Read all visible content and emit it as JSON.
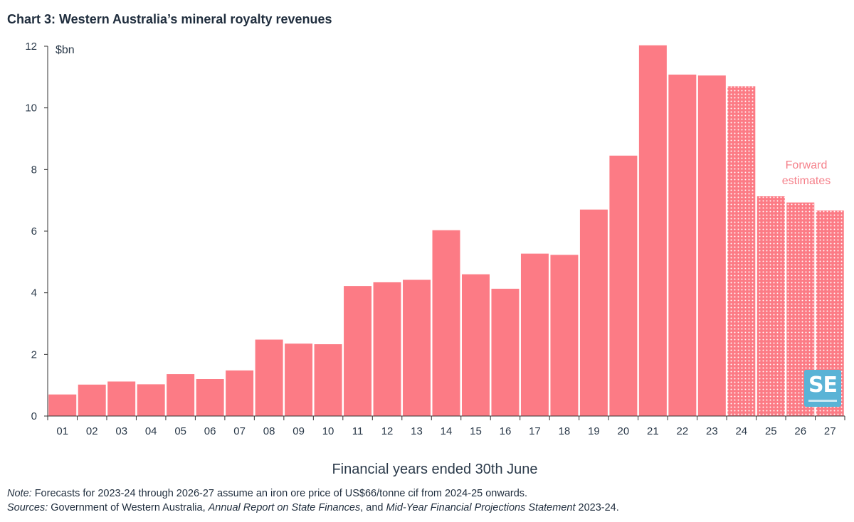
{
  "title": "Chart 3: Western Australia’s mineral royalty revenues",
  "notes": {
    "note_label": "Note:",
    "note_text": " Forecasts for 2023-24 through 2026-27 assume an iron ore price of US$66/tonne cif from 2024-25 onwards.",
    "sources_label": "Sources:",
    "sources_text_1": " Government of Western Australia, ",
    "sources_italic_1": "Annual Report on State Finances",
    "sources_text_2": ", and ",
    "sources_italic_2": "Mid-Year Financial Projections Statement",
    "sources_text_3": " 2023-24."
  },
  "logo": {
    "text": "SE"
  },
  "chart_data": {
    "type": "bar",
    "xlabel": "Financial years ended 30th June",
    "ylabel": "$bn",
    "ylim": [
      0,
      12
    ],
    "yticks": [
      0,
      2,
      4,
      6,
      8,
      10,
      12
    ],
    "categories": [
      "01",
      "02",
      "03",
      "04",
      "05",
      "06",
      "07",
      "08",
      "09",
      "10",
      "11",
      "12",
      "13",
      "14",
      "15",
      "16",
      "17",
      "18",
      "19",
      "20",
      "21",
      "22",
      "23",
      "24",
      "25",
      "26",
      "27"
    ],
    "values": [
      0.7,
      1.02,
      1.12,
      1.03,
      1.36,
      1.2,
      1.48,
      2.48,
      2.35,
      2.33,
      4.22,
      4.34,
      4.42,
      6.03,
      4.6,
      4.13,
      5.27,
      5.23,
      6.7,
      8.45,
      12.03,
      11.08,
      11.05,
      10.7,
      7.13,
      6.93,
      6.67
    ],
    "forecast_from_index": 23,
    "annotation": {
      "line1": "Forward",
      "line2": "estimates"
    },
    "grid": false,
    "colors": {
      "bar": "#fc7b85",
      "forecast_dot": "#ffffff",
      "axis": "#333333",
      "text": "#2b3a4a",
      "annotation": "#f5808a"
    }
  }
}
